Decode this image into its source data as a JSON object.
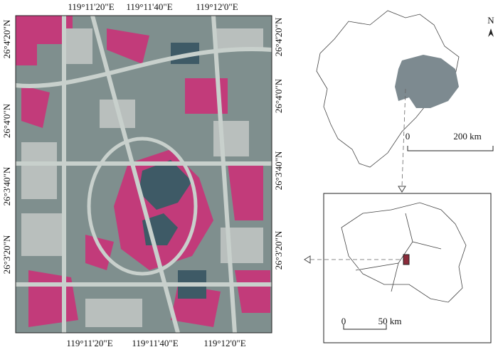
{
  "satellite_map": {
    "top_labels": [
      "119°11'20\"E",
      "119°11'40\"E",
      "119°12'0\"E"
    ],
    "bottom_labels": [
      "119°11'20\"E",
      "119°11'40\"E",
      "119°12'0\"E"
    ],
    "left_labels": [
      "26°4'20\"N",
      "26°4'0\"N",
      "26°3'40\"N",
      "26°3'20\"N"
    ],
    "right_labels": [
      "26°4'20\"N",
      "26°4'0\"N",
      "26°3'40\"N",
      "26°3'20\"N"
    ]
  },
  "overview_map": {
    "north": "N",
    "scale": {
      "start": "0",
      "end": "200 km"
    }
  },
  "inset_map": {
    "scale": {
      "start": "0",
      "end": "50 km"
    }
  }
}
